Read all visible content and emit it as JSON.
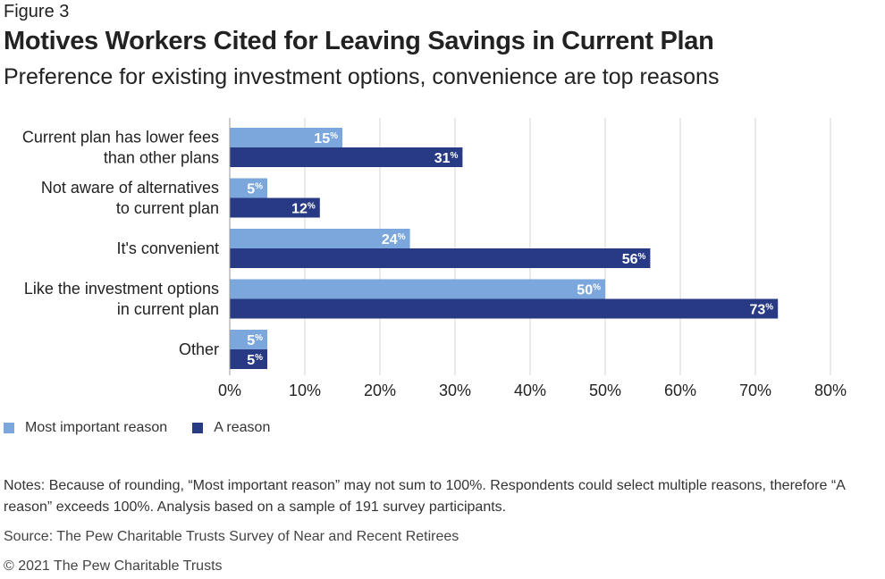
{
  "figure_label": "Figure 3",
  "title": "Motives Workers Cited for Leaving Savings in Current Plan",
  "subtitle": "Preference for existing investment options, convenience are top reasons",
  "legend": [
    {
      "label": "Most important reason",
      "color": "#7ba7dc"
    },
    {
      "label": "A reason",
      "color": "#283a83"
    }
  ],
  "notes": "Notes: Because of rounding, “Most important reason” may not sum to 100%. Respondents could select multiple reasons, therefore “A reason” exceeds 100%. Analysis based on a sample of 191 survey participants.",
  "source": "Source: The Pew Charitable Trusts Survey of Near and Recent Retirees",
  "copyright": "© 2021 The Pew Charitable Trusts",
  "chart_data": {
    "type": "bar",
    "orientation": "horizontal",
    "categories": [
      [
        "Current plan has lower fees",
        "than other plans"
      ],
      [
        "Not aware of alternatives",
        "to current plan"
      ],
      [
        "It's convenient"
      ],
      [
        "Like the investment options",
        "in current plan"
      ],
      [
        "Other"
      ]
    ],
    "series": [
      {
        "name": "Most important reason",
        "values": [
          15,
          5,
          24,
          50,
          5
        ],
        "color": "#7ba7dc"
      },
      {
        "name": "A reason",
        "values": [
          31,
          12,
          56,
          73,
          5
        ],
        "color": "#283a83"
      }
    ],
    "value_suffix": "%",
    "xlim": [
      0,
      80
    ],
    "xticks": [
      0,
      10,
      20,
      30,
      40,
      50,
      60,
      70,
      80
    ],
    "xtick_labels": [
      "0%",
      "10%",
      "20%",
      "30%",
      "40%",
      "50%",
      "60%",
      "70%",
      "80%"
    ],
    "grid": true,
    "legend_position": "bottom-left"
  }
}
